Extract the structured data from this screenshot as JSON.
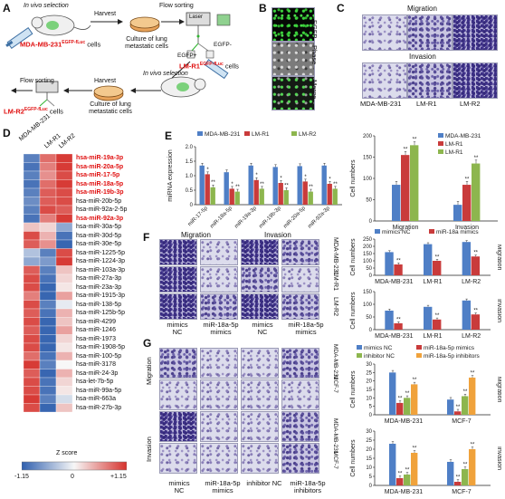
{
  "panels": {
    "A": {
      "letter": "A",
      "in_vivo_1": "In vivo selection",
      "harvest_1": "Harvest",
      "flow_sorting_1": "Flow sorting",
      "laser": "Laser",
      "cell_line": "MDA-MB-231",
      "cell_line_sup": "EGFP-fLuc",
      "cells_word": "cells",
      "culture_1": "Culture of lung metastatic cells",
      "egfp_pos": "EGFP+",
      "egfp_neg": "EGFP-",
      "lmr1": "LM-R1",
      "lmr1_sup": "EGFP-fLuc",
      "cells_word_2": "cells",
      "in_vivo_2": "In vivo selection",
      "flow_sorting_2": "Flow sorting",
      "harvest_2": "Harvest",
      "lmr2": "LM-R2",
      "lmr2_sup": "EGFP-fLuc",
      "cells_word_3": "cells",
      "culture_2": "Culture of lung metastatic cells"
    },
    "B": {
      "letter": "B",
      "rows": [
        "EGFP",
        "Phase",
        "Merge"
      ]
    },
    "C": {
      "letter": "C",
      "migration": "Migration",
      "invasion": "Invasion",
      "cols": [
        "MDA-MB-231",
        "LM-R1",
        "LM-R2"
      ]
    },
    "D": {
      "letter": "D",
      "cols": [
        "MDA-MB-231",
        "LM-R1",
        "LM-R2"
      ],
      "mirnas": [
        "hsa-miR-19a-3p",
        "hsa-miR-20a-5p",
        "hsa-miR-17-5p",
        "hsa-miR-18a-5p",
        "hsa-miR-19b-3p",
        "hsa-miR-20b-5p",
        "hsa-miR-92a-2-5p",
        "hsa-miR-92a-3p",
        "hsa-miR-30a-5p",
        "hsa-miR-30d-5p",
        "hsa-miR-30e-5p",
        "hsa-miR-1225-5p",
        "hsa-miR-1224-3p",
        "hsa-miR-103a-3p",
        "hsa-miR-27a-3p",
        "hsa-miR-23a-3p",
        "hsa-miR-1915-3p",
        "hsa-miR-138-5p",
        "hsa-miR-125b-5p",
        "hsa-miR-4299",
        "hsa-miR-1246",
        "hsa-miR-1973",
        "hsa-miR-1908-5p",
        "hsa-miR-100-5p",
        "hsa-miR-3178",
        "hsa-miR-24-3p",
        "hsa-let-7b-5p",
        "hsa-miR-99a-5p",
        "hsa-miR-663a",
        "hsa-miR-27b-3p"
      ],
      "highlight": [
        true,
        true,
        true,
        true,
        true,
        false,
        false,
        true,
        false,
        false,
        false,
        false,
        false,
        false,
        false,
        false,
        false,
        false,
        false,
        false,
        false,
        false,
        false,
        false,
        false,
        false,
        false,
        false,
        false,
        false
      ],
      "zscore": [
        [
          -0.9,
          0.8,
          1.1
        ],
        [
          -1.0,
          0.7,
          1.1
        ],
        [
          -0.9,
          0.6,
          1.0
        ],
        [
          -1.0,
          0.8,
          1.1
        ],
        [
          -0.9,
          0.9,
          1.0
        ],
        [
          -0.8,
          0.9,
          1.0
        ],
        [
          -0.9,
          1.0,
          0.9
        ],
        [
          -1.0,
          0.7,
          1.1
        ],
        [
          0.3,
          0.2,
          -0.6
        ],
        [
          1.0,
          0.4,
          -1.0
        ],
        [
          0.9,
          0.6,
          -1.1
        ],
        [
          -0.4,
          -0.9,
          1.0
        ],
        [
          -0.6,
          -0.7,
          1.1
        ],
        [
          0.9,
          -0.9,
          0.3
        ],
        [
          1.0,
          -1.0,
          0.2
        ],
        [
          1.0,
          -1.1,
          0.1
        ],
        [
          0.7,
          -1.1,
          0.5
        ],
        [
          1.0,
          -0.9,
          -0.1
        ],
        [
          0.9,
          -1.0,
          0.4
        ],
        [
          1.0,
          -1.1,
          0.3
        ],
        [
          0.9,
          -1.1,
          0.5
        ],
        [
          1.0,
          -1.1,
          0.2
        ],
        [
          1.0,
          -1.1,
          0.1
        ],
        [
          0.8,
          -1.0,
          0.4
        ],
        [
          1.1,
          -0.9,
          0.0
        ],
        [
          0.9,
          -1.1,
          0.4
        ],
        [
          1.0,
          -1.0,
          0.2
        ],
        [
          1.0,
          -1.0,
          0.1
        ],
        [
          1.1,
          -0.9,
          -0.2
        ],
        [
          1.0,
          -1.1,
          0.3
        ]
      ],
      "colorbar_title": "Z score",
      "colorbar_ticks": [
        "-1.15",
        "0",
        "+1.15"
      ],
      "colors": {
        "low": "#2f5fae",
        "mid": "#f7f7f7",
        "high": "#d6322d"
      }
    },
    "E": {
      "letter": "E"
    },
    "F": {
      "letter": "F",
      "migration": "Migration",
      "invasion": "Invasion",
      "cols": [
        "mimics NC",
        "miR-18a-5p mimics",
        "mimics NC",
        "miR-18a-5p mimics"
      ],
      "rows": [
        "MDA-MB-231",
        "LM-R1",
        "LM-R2"
      ]
    },
    "G": {
      "letter": "G",
      "cols": [
        "mimics NC",
        "miR-18a-5p mimics",
        "inhibitor NC",
        "miR-18a-5p inhibitors"
      ],
      "rows": [
        "MDA-MB-231",
        "MCF-7",
        "MDA-MB-231",
        "MCF-7"
      ],
      "side": [
        "Migration",
        "Invasion"
      ]
    }
  },
  "chart_data": [
    {
      "id": "E-mirna",
      "type": "bar",
      "ylabel": "miRNA expression",
      "ylim": [
        0,
        2.0
      ],
      "yticks": [
        "0",
        "0.5",
        "1.0",
        "1.5",
        "2.0"
      ],
      "categories": [
        "miR-17-5p",
        "miR-18a-5p",
        "miR-19a-3p",
        "miR-19b-3p",
        "miR-20a-5p",
        "miR-92a-3p"
      ],
      "series": [
        {
          "name": "MDA-MB-231",
          "color": "#4f7fc6",
          "values": [
            1.35,
            1.12,
            1.35,
            1.3,
            1.33,
            1.35
          ]
        },
        {
          "name": "LM-R1",
          "color": "#c93b3b",
          "values": [
            1.05,
            0.55,
            0.85,
            0.75,
            0.8,
            0.72
          ]
        },
        {
          "name": "LM-R2",
          "color": "#8db64e",
          "values": [
            0.6,
            0.45,
            0.55,
            0.5,
            0.45,
            0.55
          ]
        }
      ],
      "stars": "*",
      "stars2": "**",
      "legend": "top"
    },
    {
      "id": "E-cells",
      "type": "bar",
      "ylabel": "Cell numbers",
      "ylim": [
        0,
        200
      ],
      "yticks": [
        "0",
        "50",
        "100",
        "150",
        "200"
      ],
      "categories": [
        "Migration",
        "Invasion"
      ],
      "series": [
        {
          "name": "MDA-MB-231",
          "color": "#4f7fc6",
          "values": [
            85,
            38
          ]
        },
        {
          "name": "LM-R1",
          "color": "#c93b3b",
          "values": [
            155,
            85
          ]
        },
        {
          "name": "LM-R1",
          "color": "#8db64e",
          "values": [
            178,
            135
          ]
        }
      ],
      "stars": "**",
      "legend": "top-right"
    },
    {
      "id": "F-migration",
      "type": "bar",
      "ylabel": "Cell numbers",
      "side_label": "Migration",
      "ylim": [
        0,
        250
      ],
      "yticks": [
        "0",
        "50",
        "100",
        "150",
        "200",
        "250"
      ],
      "categories": [
        "MDA-MB-231",
        "LM-R1",
        "LM-R2"
      ],
      "series": [
        {
          "name": "mimics NC",
          "color": "#4f7fc6",
          "values": [
            160,
            215,
            230
          ]
        },
        {
          "name": "miR-18a mimics",
          "color": "#c93b3b",
          "values": [
            75,
            100,
            130
          ]
        }
      ],
      "stars": "**",
      "legend": "top"
    },
    {
      "id": "F-invasion",
      "type": "bar",
      "ylabel": "Cell numbers",
      "side_label": "Invasion",
      "ylim": [
        0,
        150
      ],
      "yticks": [
        "0",
        "50",
        "100",
        "150"
      ],
      "categories": [
        "MDA-MB-231",
        "LM-R1",
        "LM-R2"
      ],
      "series": [
        {
          "name": "mimics NC",
          "color": "#4f7fc6",
          "values": [
            75,
            90,
            115
          ]
        },
        {
          "name": "miR-18a mimics",
          "color": "#c93b3b",
          "values": [
            25,
            40,
            60
          ]
        }
      ],
      "stars": "**"
    },
    {
      "id": "G-migration",
      "type": "bar",
      "ylabel": "Cell numbers",
      "side_label": "Migration",
      "ylim": [
        0,
        30
      ],
      "yticks": [
        "0",
        "5",
        "10",
        "15",
        "20",
        "25",
        "30"
      ],
      "categories": [
        "MDA-MB-231",
        "MCF-7"
      ],
      "series": [
        {
          "name": "mimics NC",
          "color": "#4f7fc6",
          "values": [
            25,
            9
          ]
        },
        {
          "name": "miR-18a-5p mimics",
          "color": "#c93b3b",
          "values": [
            7,
            2
          ]
        },
        {
          "name": "inhibitor NC",
          "color": "#8db64e",
          "values": [
            10,
            11
          ]
        },
        {
          "name": "miR-18a-5p inhibitors",
          "color": "#f0a23b",
          "values": [
            18,
            22
          ]
        }
      ],
      "stars": "**",
      "legend": "top"
    },
    {
      "id": "G-invasion",
      "type": "bar",
      "ylabel": "Cell numbers",
      "side_label": "Invasion",
      "ylim": [
        0,
        30
      ],
      "yticks": [
        "0",
        "5",
        "10",
        "15",
        "20",
        "25",
        "30"
      ],
      "categories": [
        "MDA-MB-231",
        "MCF-7"
      ],
      "series": [
        {
          "name": "mimics NC",
          "color": "#4f7fc6",
          "values": [
            23,
            13
          ]
        },
        {
          "name": "miR-18a-5p mimics",
          "color": "#c93b3b",
          "values": [
            4,
            2
          ]
        },
        {
          "name": "inhibitor NC",
          "color": "#8db64e",
          "values": [
            6,
            9
          ]
        },
        {
          "name": "miR-18a-5p inhibitors",
          "color": "#f0a23b",
          "values": [
            18,
            20
          ]
        }
      ],
      "stars": "**"
    }
  ]
}
